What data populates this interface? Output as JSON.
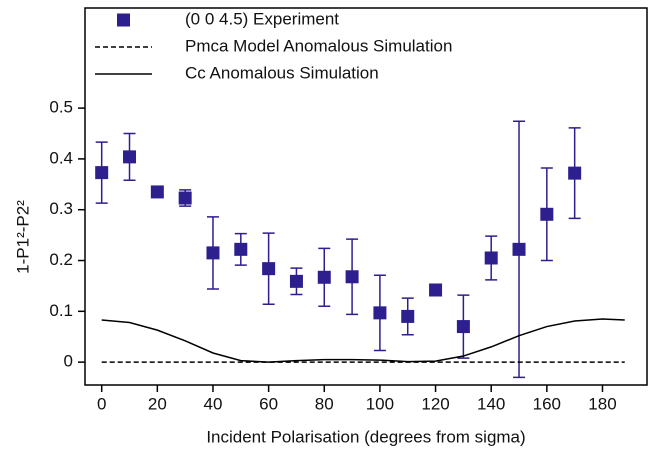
{
  "chart_data": {
    "type": "scatter",
    "x_label": "Incident Polarisation (degrees from sigma)",
    "y_label": "1-P1²-P2²",
    "xlim": [
      -6,
      196
    ],
    "ylim": [
      -0.045,
      0.697
    ],
    "xticks": [
      0,
      20,
      40,
      60,
      80,
      100,
      120,
      140,
      160,
      180
    ],
    "yticks": [
      0,
      0.1,
      0.2,
      0.3,
      0.4,
      0.5
    ],
    "legend": "upper left",
    "series": [
      {
        "name": "(0 0 4.5) Experiment",
        "color": "#2e1f8f",
        "marker": "square",
        "x": [
          0,
          10,
          20,
          30,
          40,
          50,
          60,
          70,
          80,
          90,
          100,
          110,
          120,
          130,
          140,
          150,
          160,
          170
        ],
        "values": [
          0.373,
          0.404,
          0.335,
          0.323,
          0.215,
          0.222,
          0.184,
          0.159,
          0.167,
          0.168,
          0.097,
          0.09,
          0.142,
          0.07,
          0.205,
          0.222,
          0.291,
          0.372
        ],
        "errors": [
          0.06,
          0.046,
          0.008,
          0.016,
          0.071,
          0.031,
          0.07,
          0.026,
          0.057,
          0.074,
          0.074,
          0.036,
          0.01,
          0.062,
          0.043,
          0.252,
          0.091,
          0.089
        ]
      },
      {
        "name": "Pmca Model Anomalous Simulation",
        "color": "#000000",
        "line_style": "dashed",
        "x": [
          0,
          188
        ],
        "values": [
          0,
          0
        ]
      },
      {
        "name": "Cc Anomalous Simulation",
        "color": "#000000",
        "line_style": "solid",
        "x": [
          0,
          10,
          20,
          30,
          40,
          50,
          60,
          70,
          80,
          90,
          100,
          110,
          120,
          130,
          140,
          150,
          160,
          170,
          180,
          188
        ],
        "values": [
          0.083,
          0.078,
          0.063,
          0.042,
          0.018,
          0.003,
          0.0,
          0.003,
          0.005,
          0.005,
          0.004,
          0.001,
          0.002,
          0.012,
          0.03,
          0.052,
          0.07,
          0.081,
          0.085,
          0.083
        ]
      }
    ]
  }
}
